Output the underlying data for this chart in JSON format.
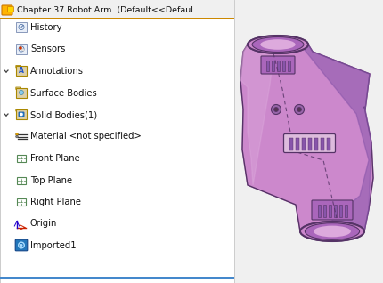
{
  "title": "Chapter 37 Robot Arm  (Default<<Defaul",
  "bg_left": "#ffffff",
  "bg_right": "#f0f0f0",
  "header_bg": "#f0f0f0",
  "header_border": "#cc8800",
  "divider_color": "#4488cc",
  "tree_items": [
    {
      "label": "History",
      "icon": "history",
      "arrow": false
    },
    {
      "label": "Sensors",
      "icon": "sensor",
      "arrow": false
    },
    {
      "label": "Annotations",
      "icon": "folder_a",
      "arrow": true
    },
    {
      "label": "Surface Bodies",
      "icon": "folder_surf",
      "arrow": false
    },
    {
      "label": "Solid Bodies(1)",
      "icon": "folder_blue",
      "arrow": true
    },
    {
      "label": "Material <not specified>",
      "icon": "material",
      "arrow": false
    },
    {
      "label": "Front Plane",
      "icon": "plane",
      "arrow": false
    },
    {
      "label": "Top Plane",
      "icon": "plane",
      "arrow": false
    },
    {
      "label": "Right Plane",
      "icon": "plane",
      "arrow": false
    },
    {
      "label": "Origin",
      "icon": "origin",
      "arrow": false
    },
    {
      "label": "Imported1",
      "icon": "import",
      "arrow": false
    }
  ],
  "arm_body_color": "#cc88cc",
  "arm_dark_color": "#553366",
  "arm_mid_color": "#aa66bb",
  "arm_light_color": "#ddaadd",
  "arm_shadow_color": "#8855aa"
}
